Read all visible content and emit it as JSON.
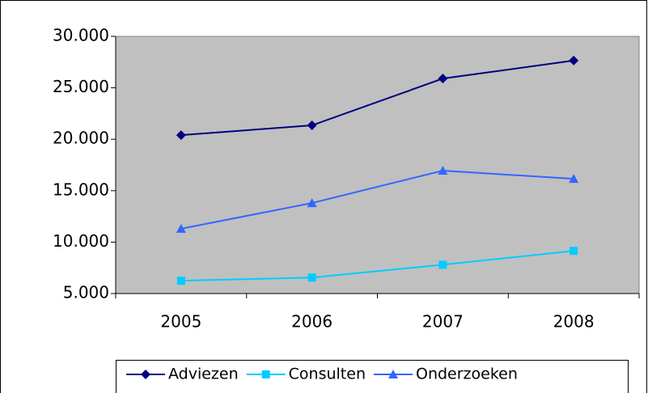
{
  "chart_data": {
    "type": "line",
    "categories": [
      "2005",
      "2006",
      "2007",
      "2008"
    ],
    "series": [
      {
        "name": "Adviezen",
        "color": "#000080",
        "marker": "diamond",
        "values": [
          20400,
          21350,
          25900,
          27650
        ]
      },
      {
        "name": "Consulten",
        "color": "#00ccff",
        "marker": "square",
        "values": [
          6250,
          6550,
          7800,
          9150
        ]
      },
      {
        "name": "Onderzoeken",
        "color": "#3366ff",
        "marker": "triangle",
        "values": [
          11300,
          13800,
          16950,
          16150
        ]
      }
    ],
    "ylim": [
      5000,
      30000
    ],
    "yticks": [
      {
        "value": 5000,
        "label": "5.000"
      },
      {
        "value": 10000,
        "label": "10.000"
      },
      {
        "value": 15000,
        "label": "15.000"
      },
      {
        "value": 20000,
        "label": "20.000"
      },
      {
        "value": 25000,
        "label": "25.000"
      },
      {
        "value": 30000,
        "label": "30.000"
      }
    ],
    "plot_background": "#c0c0c0",
    "legend": "bottom"
  }
}
